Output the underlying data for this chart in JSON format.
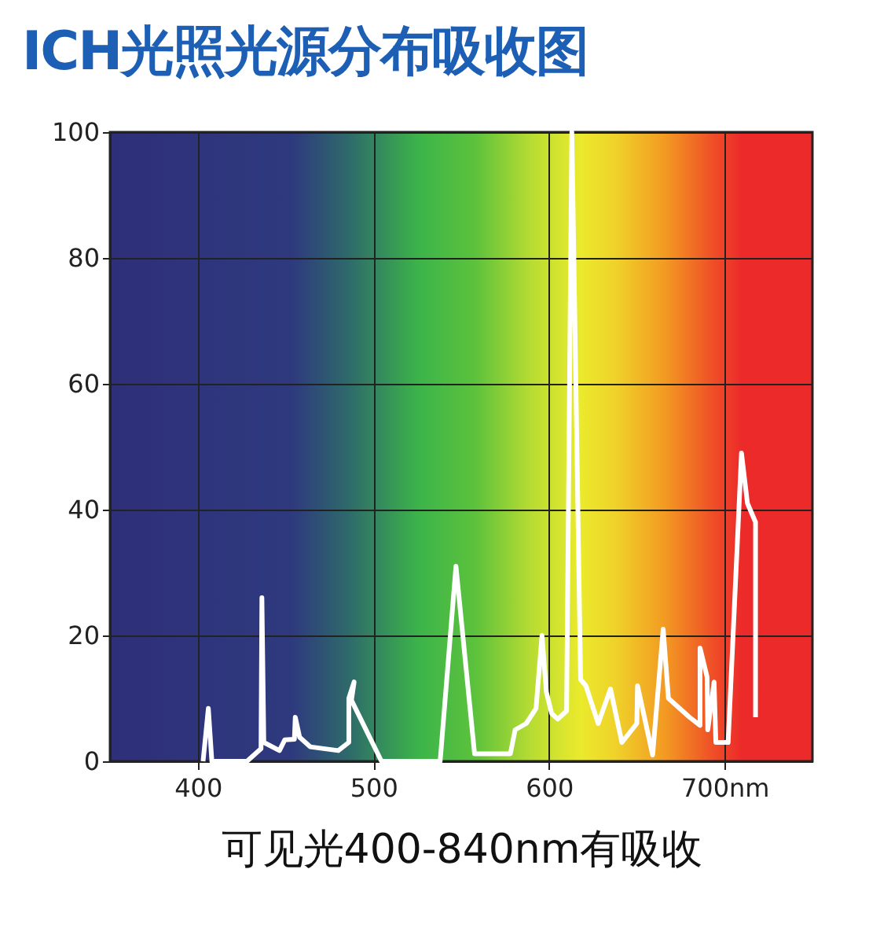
{
  "chart_data": {
    "type": "line",
    "title": "ICH光照光源分布吸收图",
    "xlabel": "可见光400-840nm有吸收",
    "x": [
      403,
      406,
      408,
      428,
      436,
      436.5,
      437.6,
      446.5,
      449.5,
      455,
      455.5,
      458,
      464,
      480,
      486,
      486,
      489,
      487.5,
      504.6,
      538,
      547,
      557.6,
      578,
      580.7,
      587,
      592.6,
      596,
      598.5,
      601.5,
      605,
      610,
      613,
      618,
      621,
      628,
      635,
      641.5,
      650,
      650.4,
      659,
      665,
      668,
      680,
      686,
      686,
      690,
      690.4,
      694,
      695,
      702,
      709.6,
      713,
      717.6,
      717.6
    ],
    "series": [
      {
        "color": "#ffffff",
        "values": [
          0,
          8.4,
          0,
          0,
          2,
          26,
          3,
          1.7,
          3.4,
          3.5,
          7,
          3.8,
          2.3,
          1.7,
          3,
          10,
          12.6,
          9.7,
          0,
          0,
          31,
          1.2,
          1.2,
          5,
          6,
          8.4,
          20,
          11,
          7.6,
          6.7,
          8,
          100,
          13,
          12,
          6,
          11.5,
          3,
          6,
          12,
          1,
          21,
          10,
          7,
          5.7,
          18,
          13.4,
          5,
          12.6,
          3,
          3,
          49,
          41,
          38,
          7
        ]
      }
    ],
    "xlim": [
      350,
      750
    ],
    "xticks": [
      400,
      500,
      600,
      {
        "value": 700,
        "label": "700nm"
      }
    ],
    "ylim": [
      0,
      100
    ],
    "yticks": [
      0,
      20,
      40,
      60,
      80,
      100
    ],
    "grid": true
  }
}
